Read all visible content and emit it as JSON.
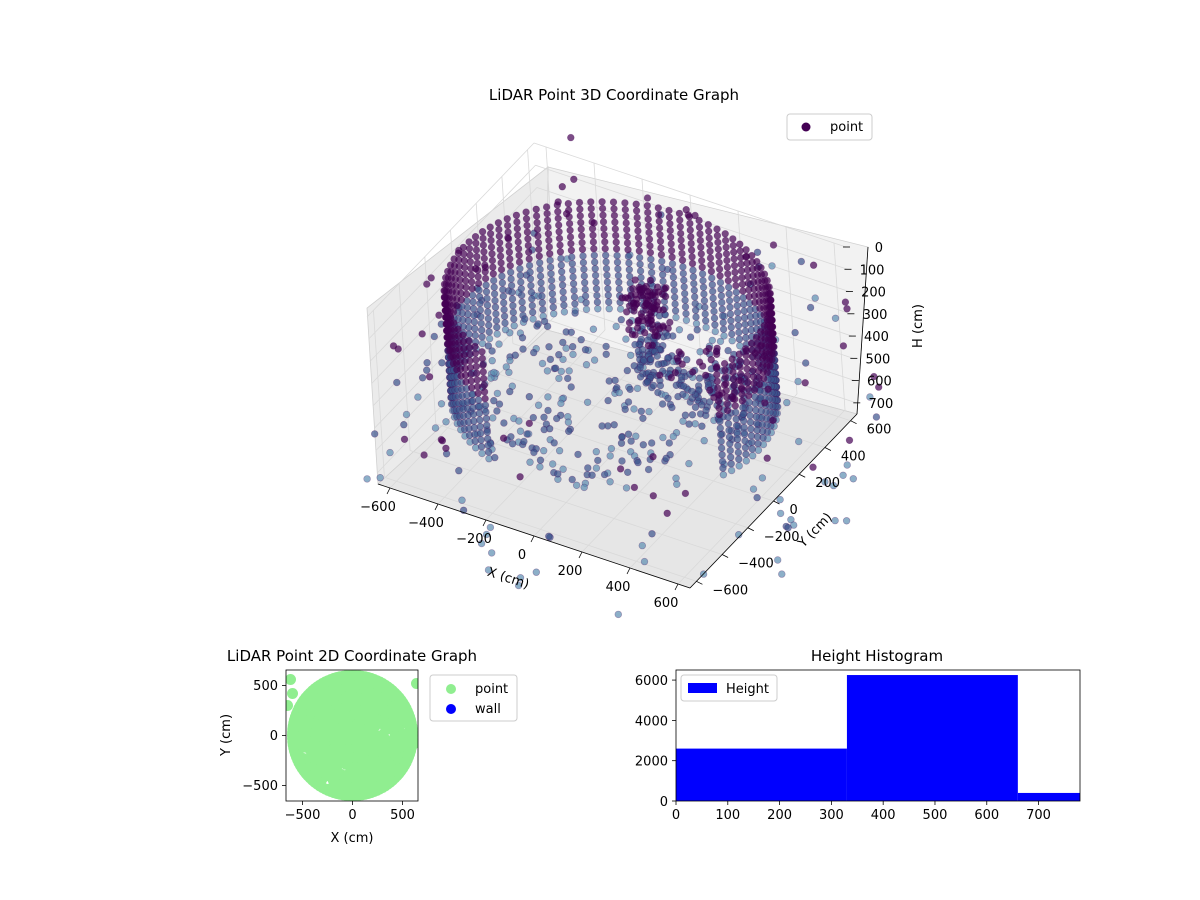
{
  "colors": {
    "point_dark": "#440154",
    "point_mid": "#3b528b",
    "point_light": "#5b8db0",
    "point_2d": "#90ee90",
    "wall_2d": "#0000ff",
    "histogram": "#0000ff",
    "pane": "#f2f2f2",
    "grid": "#d9d9d9"
  },
  "chart_data": [
    {
      "type": "scatter3d",
      "title": "LiDAR Point 3D Coordinate Graph",
      "xlabel": "X (cm)",
      "ylabel": "Y (cm)",
      "zlabel": "H (cm)",
      "xlim": [
        -650,
        650
      ],
      "ylim": [
        -650,
        650
      ],
      "zlim": [
        0,
        750
      ],
      "z_inverted": true,
      "xticks": [
        "−600",
        "−400",
        "−200",
        "0",
        "200",
        "400",
        "600"
      ],
      "yticks": [
        "−600",
        "−400",
        "−200",
        "0",
        "200",
        "400",
        "600"
      ],
      "zticks": [
        "0",
        "100",
        "200",
        "300",
        "400",
        "500",
        "600",
        "700"
      ],
      "legend": [
        "point"
      ],
      "legend_position": "top-right",
      "series": [
        {
          "name": "point",
          "shape": "cylindrical wall of points, radius about 600 cm, heights 50–550 cm, with scattered outliers beyond the wall"
        }
      ]
    },
    {
      "type": "scatter",
      "title": "LiDAR Point 2D Coordinate Graph",
      "xlabel": "X (cm)",
      "ylabel": "Y (cm)",
      "xlim": [
        -650,
        650
      ],
      "ylim": [
        -650,
        650
      ],
      "xticks": [
        "−500",
        "0",
        "500"
      ],
      "yticks": [
        "500",
        "0",
        "−500"
      ],
      "legend": [
        "point",
        "wall"
      ],
      "legend_position": "outside right",
      "series": [
        {
          "name": "point",
          "shape": "dense disk of points, radius about 600 cm"
        },
        {
          "name": "wall"
        }
      ]
    },
    {
      "type": "histogram",
      "title": "Height Histogram",
      "xlim": [
        0,
        780
      ],
      "ylim": [
        0,
        6500
      ],
      "xticks": [
        "0",
        "100",
        "200",
        "300",
        "400",
        "500",
        "600",
        "700"
      ],
      "yticks": [
        "0",
        "2000",
        "4000",
        "6000"
      ],
      "legend": [
        "Height"
      ],
      "legend_position": "top-left",
      "bins": [
        {
          "start": 0,
          "end": 330,
          "count": 2600
        },
        {
          "start": 330,
          "end": 660,
          "count": 6250
        },
        {
          "start": 660,
          "end": 780,
          "count": 400
        }
      ]
    }
  ]
}
